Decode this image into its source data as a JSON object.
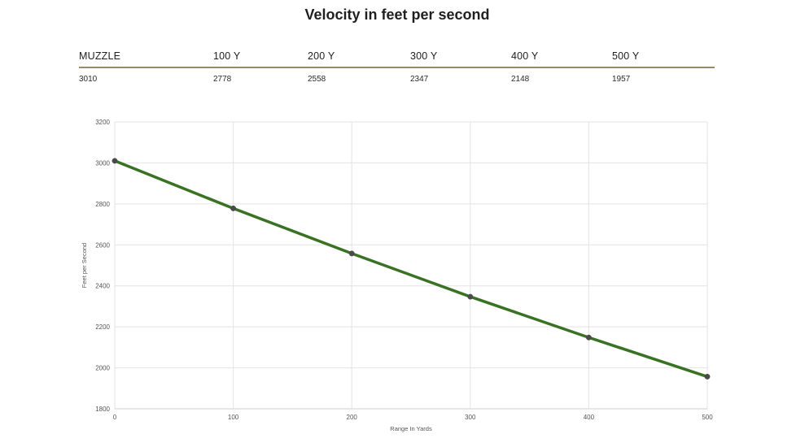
{
  "title": "Velocity in feet per second",
  "table": {
    "headers": [
      "MUZZLE",
      "100 Y",
      "200 Y",
      "300 Y",
      "400 Y",
      "500 Y"
    ],
    "values": [
      "3010",
      "2778",
      "2558",
      "2347",
      "2148",
      "1957"
    ]
  },
  "chart_data": {
    "type": "line",
    "xlabel": "Range In Yards",
    "ylabel": "Feet per Second",
    "x": [
      0,
      100,
      200,
      300,
      400,
      500
    ],
    "xlim": [
      0,
      500
    ],
    "ylim": [
      1800,
      3200
    ],
    "xticks": [
      0,
      100,
      200,
      300,
      400,
      500
    ],
    "yticks": [
      1800,
      2000,
      2200,
      2400,
      2600,
      2800,
      3000,
      3200
    ],
    "grid": true,
    "series": [
      {
        "values": [
          3010,
          2778,
          2558,
          2347,
          2148,
          1957
        ],
        "color": "#3a7224",
        "marker_color": "#4a4a4a"
      }
    ]
  }
}
